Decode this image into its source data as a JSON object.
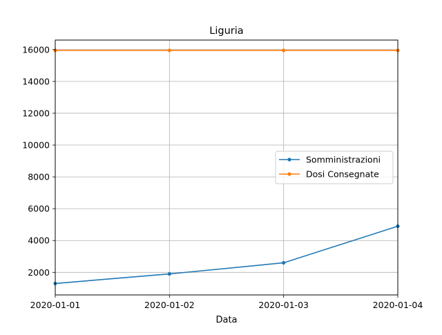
{
  "chart_data": {
    "type": "line",
    "title": "Liguria",
    "xlabel": "Data",
    "ylabel": "",
    "x": [
      "2020-01-01",
      "2020-01-02",
      "2020-01-03",
      "2020-01-04"
    ],
    "x_tick_labels": [
      "2020-01-01",
      "2020-01-02",
      "2020-01-03",
      "2020-01-04"
    ],
    "xlim": [
      "2020-01-01",
      "2020-01-04"
    ],
    "ylim": [
      580,
      16600
    ],
    "y_ticks": [
      2000,
      4000,
      6000,
      8000,
      10000,
      12000,
      14000,
      16000
    ],
    "y_tick_labels": [
      "2000",
      "4000",
      "6000",
      "8000",
      "10000",
      "12000",
      "14000",
      "16000"
    ],
    "grid": true,
    "legend_position": "center-right",
    "series": [
      {
        "name": "Somministrazioni",
        "color": "#1f77b4",
        "marker": "point",
        "values": [
          1300,
          1900,
          2600,
          4900
        ]
      },
      {
        "name": "Dosi Consegnate",
        "color": "#ff7f0e",
        "marker": "point",
        "values": [
          15950,
          15950,
          15950,
          15950
        ]
      }
    ]
  }
}
